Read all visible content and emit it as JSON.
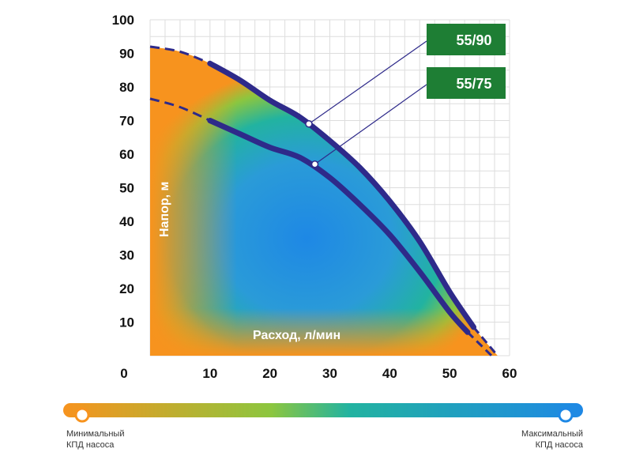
{
  "colors": {
    "min_efficiency": "#f7931e",
    "mid_efficiency": "#22b3a0",
    "max_efficiency": "#1e88e5",
    "curve": "#2e2a8a",
    "badge": "#1e7e34"
  },
  "chart_data": {
    "type": "line",
    "title": "",
    "xlabel": "Расход, л/мин",
    "ylabel": "Напор, м",
    "xlim": [
      0,
      60
    ],
    "ylim": [
      0,
      100
    ],
    "x_ticks": [
      "0",
      "10",
      "20",
      "30",
      "40",
      "50",
      "60"
    ],
    "y_ticks": [
      "10",
      "20",
      "30",
      "40",
      "50",
      "60",
      "70",
      "80",
      "90",
      "100"
    ],
    "grid": true,
    "series": [
      {
        "name": "55/90",
        "marker": {
          "x": 26.5,
          "y": 69
        },
        "points": [
          [
            0,
            92
          ],
          [
            5,
            90.5
          ],
          [
            10,
            87
          ],
          [
            15,
            82
          ],
          [
            20,
            76
          ],
          [
            25,
            71
          ],
          [
            30,
            64
          ],
          [
            35,
            56
          ],
          [
            40,
            46
          ],
          [
            45,
            34
          ],
          [
            50,
            19
          ],
          [
            54,
            8.5
          ],
          [
            58,
            0
          ]
        ]
      },
      {
        "name": "55/75",
        "marker": {
          "x": 27.5,
          "y": 57
        },
        "points": [
          [
            0,
            76.5
          ],
          [
            5,
            74
          ],
          [
            10,
            70
          ],
          [
            15,
            66
          ],
          [
            20,
            62
          ],
          [
            25,
            59
          ],
          [
            30,
            53
          ],
          [
            35,
            45
          ],
          [
            40,
            36
          ],
          [
            45,
            25
          ],
          [
            50,
            13
          ],
          [
            53,
            7
          ],
          [
            57,
            0
          ]
        ]
      }
    ]
  },
  "legend": {
    "min_label_line1": "Минимальный",
    "min_label_line2": "КПД насоса",
    "max_label_line1": "Максимальный",
    "max_label_line2": "КПД насоса"
  }
}
